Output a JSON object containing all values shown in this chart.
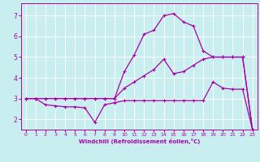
{
  "xlabel": "Windchill (Refroidissement éolien,°C)",
  "background_color": "#c8eef0",
  "grid_color": "#ffffff",
  "line_color": "#aa00aa",
  "xlim": [
    -0.5,
    23.5
  ],
  "ylim": [
    1.5,
    7.6
  ],
  "xticks": [
    0,
    1,
    2,
    3,
    4,
    5,
    6,
    7,
    8,
    9,
    10,
    11,
    12,
    13,
    14,
    15,
    16,
    17,
    18,
    19,
    20,
    21,
    22,
    23
  ],
  "yticks": [
    2,
    3,
    4,
    5,
    6,
    7
  ],
  "lines": [
    {
      "x": [
        0,
        1,
        2,
        3,
        4,
        5,
        6,
        7,
        8,
        9,
        10,
        11,
        12,
        13,
        14,
        15,
        16,
        17,
        18,
        19,
        20,
        21,
        22,
        23
      ],
      "y": [
        3.0,
        3.0,
        2.7,
        2.65,
        2.6,
        2.6,
        2.55,
        1.85,
        2.7,
        2.8,
        2.9,
        2.9,
        2.9,
        2.9,
        2.9,
        2.9,
        2.9,
        2.9,
        2.9,
        3.8,
        3.5,
        3.45,
        3.45,
        1.5
      ]
    },
    {
      "x": [
        0,
        1,
        2,
        3,
        4,
        5,
        6,
        7,
        8,
        9,
        10,
        11,
        12,
        13,
        14,
        15,
        16,
        17,
        18,
        19,
        20,
        21,
        22,
        23
      ],
      "y": [
        3.0,
        3.0,
        3.0,
        3.0,
        3.0,
        3.0,
        3.0,
        3.0,
        3.0,
        3.0,
        3.5,
        3.8,
        4.1,
        4.4,
        4.9,
        4.2,
        4.3,
        4.6,
        4.9,
        5.0,
        5.0,
        5.0,
        5.0,
        1.5
      ]
    },
    {
      "x": [
        0,
        1,
        2,
        3,
        4,
        5,
        6,
        7,
        8,
        9,
        10,
        11,
        12,
        13,
        14,
        15,
        16,
        17,
        18,
        19,
        20,
        21,
        22,
        23
      ],
      "y": [
        3.0,
        3.0,
        3.0,
        3.0,
        3.0,
        3.0,
        3.0,
        3.0,
        3.0,
        3.0,
        4.3,
        5.1,
        6.1,
        6.3,
        7.0,
        7.1,
        6.7,
        6.5,
        5.3,
        5.0,
        5.0,
        5.0,
        5.0,
        1.5
      ]
    }
  ],
  "marker": "+",
  "markersize": 3,
  "markeredgewidth": 0.8,
  "linewidth": 0.9
}
